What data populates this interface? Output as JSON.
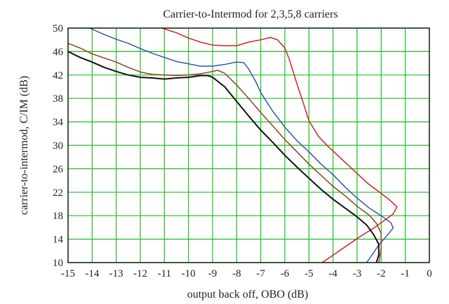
{
  "chart_data": {
    "type": "line",
    "title": "Carrier-to-Intermod for 2,3,5,8 carriers",
    "xlabel": "output back off, OBO (dB)",
    "ylabel": "carrier-to-intermod, C/IM (dB)",
    "xlim": [
      -15,
      0
    ],
    "ylim": [
      10,
      50
    ],
    "xticks": [
      "-15",
      "-14",
      "-13",
      "-12",
      "-11",
      "-10",
      "-9",
      "-8",
      "-7",
      "-6",
      "-5",
      "-4",
      "-3",
      "-2",
      "-1",
      "0"
    ],
    "yticks": [
      "10",
      "14",
      "18",
      "22",
      "26",
      "30",
      "34",
      "38",
      "42",
      "46",
      "50"
    ],
    "grid": true,
    "grid_color": "#22bb22",
    "series": [
      {
        "color": "#cc2222",
        "points": [
          [
            -11.1,
            50
          ],
          [
            -10.5,
            49.2
          ],
          [
            -10,
            48.3
          ],
          [
            -9.5,
            47.6
          ],
          [
            -9,
            47.1
          ],
          [
            -8.5,
            47.0
          ],
          [
            -8,
            47.0
          ],
          [
            -7.5,
            47.6
          ],
          [
            -7,
            48.0
          ],
          [
            -6.6,
            48.4
          ],
          [
            -6.3,
            48.0
          ],
          [
            -6,
            46.6
          ],
          [
            -5.8,
            44.5
          ],
          [
            -5.5,
            40.5
          ],
          [
            -5.2,
            36.8
          ],
          [
            -5,
            34.2
          ],
          [
            -4.6,
            31.5
          ],
          [
            -4.2,
            29.8
          ],
          [
            -3.6,
            27.5
          ],
          [
            -3,
            25.2
          ],
          [
            -2.5,
            23.3
          ],
          [
            -2,
            21.8
          ],
          [
            -1.6,
            20.5
          ],
          [
            -1.35,
            19.5
          ],
          [
            -1.5,
            18.3
          ],
          [
            -2.2,
            16.2
          ],
          [
            -3,
            14.1
          ],
          [
            -3.6,
            12.4
          ],
          [
            -4.2,
            10.7
          ],
          [
            -4.45,
            10
          ]
        ]
      },
      {
        "color": "#3355aa",
        "points": [
          [
            -14.1,
            50
          ],
          [
            -13.5,
            48.9
          ],
          [
            -13,
            48.1
          ],
          [
            -12.5,
            47.4
          ],
          [
            -12,
            46.5
          ],
          [
            -11.5,
            45.7
          ],
          [
            -11,
            45.0
          ],
          [
            -10.5,
            44.3
          ],
          [
            -10,
            43.9
          ],
          [
            -9.5,
            43.5
          ],
          [
            -9,
            43.5
          ],
          [
            -8.5,
            43.8
          ],
          [
            -8,
            44.2
          ],
          [
            -7.7,
            44.1
          ],
          [
            -7.5,
            43.0
          ],
          [
            -7.2,
            40.8
          ],
          [
            -7,
            39.0
          ],
          [
            -6.5,
            35.8
          ],
          [
            -6,
            33.1
          ],
          [
            -5.5,
            30.8
          ],
          [
            -5,
            28.9
          ],
          [
            -4.5,
            26.8
          ],
          [
            -4,
            25.0
          ],
          [
            -3.5,
            22.9
          ],
          [
            -3,
            21.0
          ],
          [
            -2.5,
            19.3
          ],
          [
            -2,
            18.0
          ],
          [
            -1.6,
            16.8
          ],
          [
            -1.5,
            15.9
          ],
          [
            -1.8,
            14.4
          ],
          [
            -2.1,
            13.0
          ],
          [
            -2.4,
            11.2
          ],
          [
            -2.6,
            10
          ]
        ]
      },
      {
        "color": "#884422",
        "points": [
          [
            -15,
            47.4
          ],
          [
            -14.5,
            46.6
          ],
          [
            -14,
            45.6
          ],
          [
            -13.5,
            44.9
          ],
          [
            -13,
            44.2
          ],
          [
            -12.5,
            43.3
          ],
          [
            -12,
            42.5
          ],
          [
            -11.5,
            42.1
          ],
          [
            -11,
            42.0
          ],
          [
            -10.5,
            41.9
          ],
          [
            -10,
            42.0
          ],
          [
            -9.5,
            42.2
          ],
          [
            -9,
            42.6
          ],
          [
            -8.8,
            42.8
          ],
          [
            -8.5,
            42.3
          ],
          [
            -8,
            40.3
          ],
          [
            -7.5,
            38.0
          ],
          [
            -7,
            35.6
          ],
          [
            -6.5,
            33.3
          ],
          [
            -6,
            31.0
          ],
          [
            -5.5,
            28.9
          ],
          [
            -5,
            26.8
          ],
          [
            -4.5,
            24.9
          ],
          [
            -4,
            23.0
          ],
          [
            -3.5,
            21.4
          ],
          [
            -3,
            19.6
          ],
          [
            -2.5,
            18.1
          ],
          [
            -2.2,
            16.7
          ],
          [
            -2.0,
            15.0
          ],
          [
            -2.0,
            12.3
          ],
          [
            -2.1,
            10
          ]
        ]
      },
      {
        "color": "#111111",
        "points": [
          [
            -15,
            46.0
          ],
          [
            -14.5,
            45.0
          ],
          [
            -14,
            44.2
          ],
          [
            -13.5,
            43.3
          ],
          [
            -13,
            42.6
          ],
          [
            -12.5,
            42.0
          ],
          [
            -12,
            41.6
          ],
          [
            -11.5,
            41.5
          ],
          [
            -11,
            41.3
          ],
          [
            -10.5,
            41.5
          ],
          [
            -10,
            41.6
          ],
          [
            -9.5,
            41.9
          ],
          [
            -9.2,
            41.9
          ],
          [
            -9,
            41.6
          ],
          [
            -8.5,
            40.0
          ],
          [
            -8,
            37.5
          ],
          [
            -7.5,
            35.0
          ],
          [
            -7,
            32.6
          ],
          [
            -6.5,
            30.5
          ],
          [
            -6,
            28.3
          ],
          [
            -5.5,
            26.3
          ],
          [
            -5,
            24.4
          ],
          [
            -4.5,
            22.5
          ],
          [
            -4,
            20.8
          ],
          [
            -3.5,
            19.3
          ],
          [
            -3,
            17.8
          ],
          [
            -2.6,
            16.4
          ],
          [
            -2.3,
            14.7
          ],
          [
            -2.1,
            13.1
          ],
          [
            -2.1,
            11.3
          ],
          [
            -2.2,
            10
          ]
        ]
      }
    ]
  }
}
